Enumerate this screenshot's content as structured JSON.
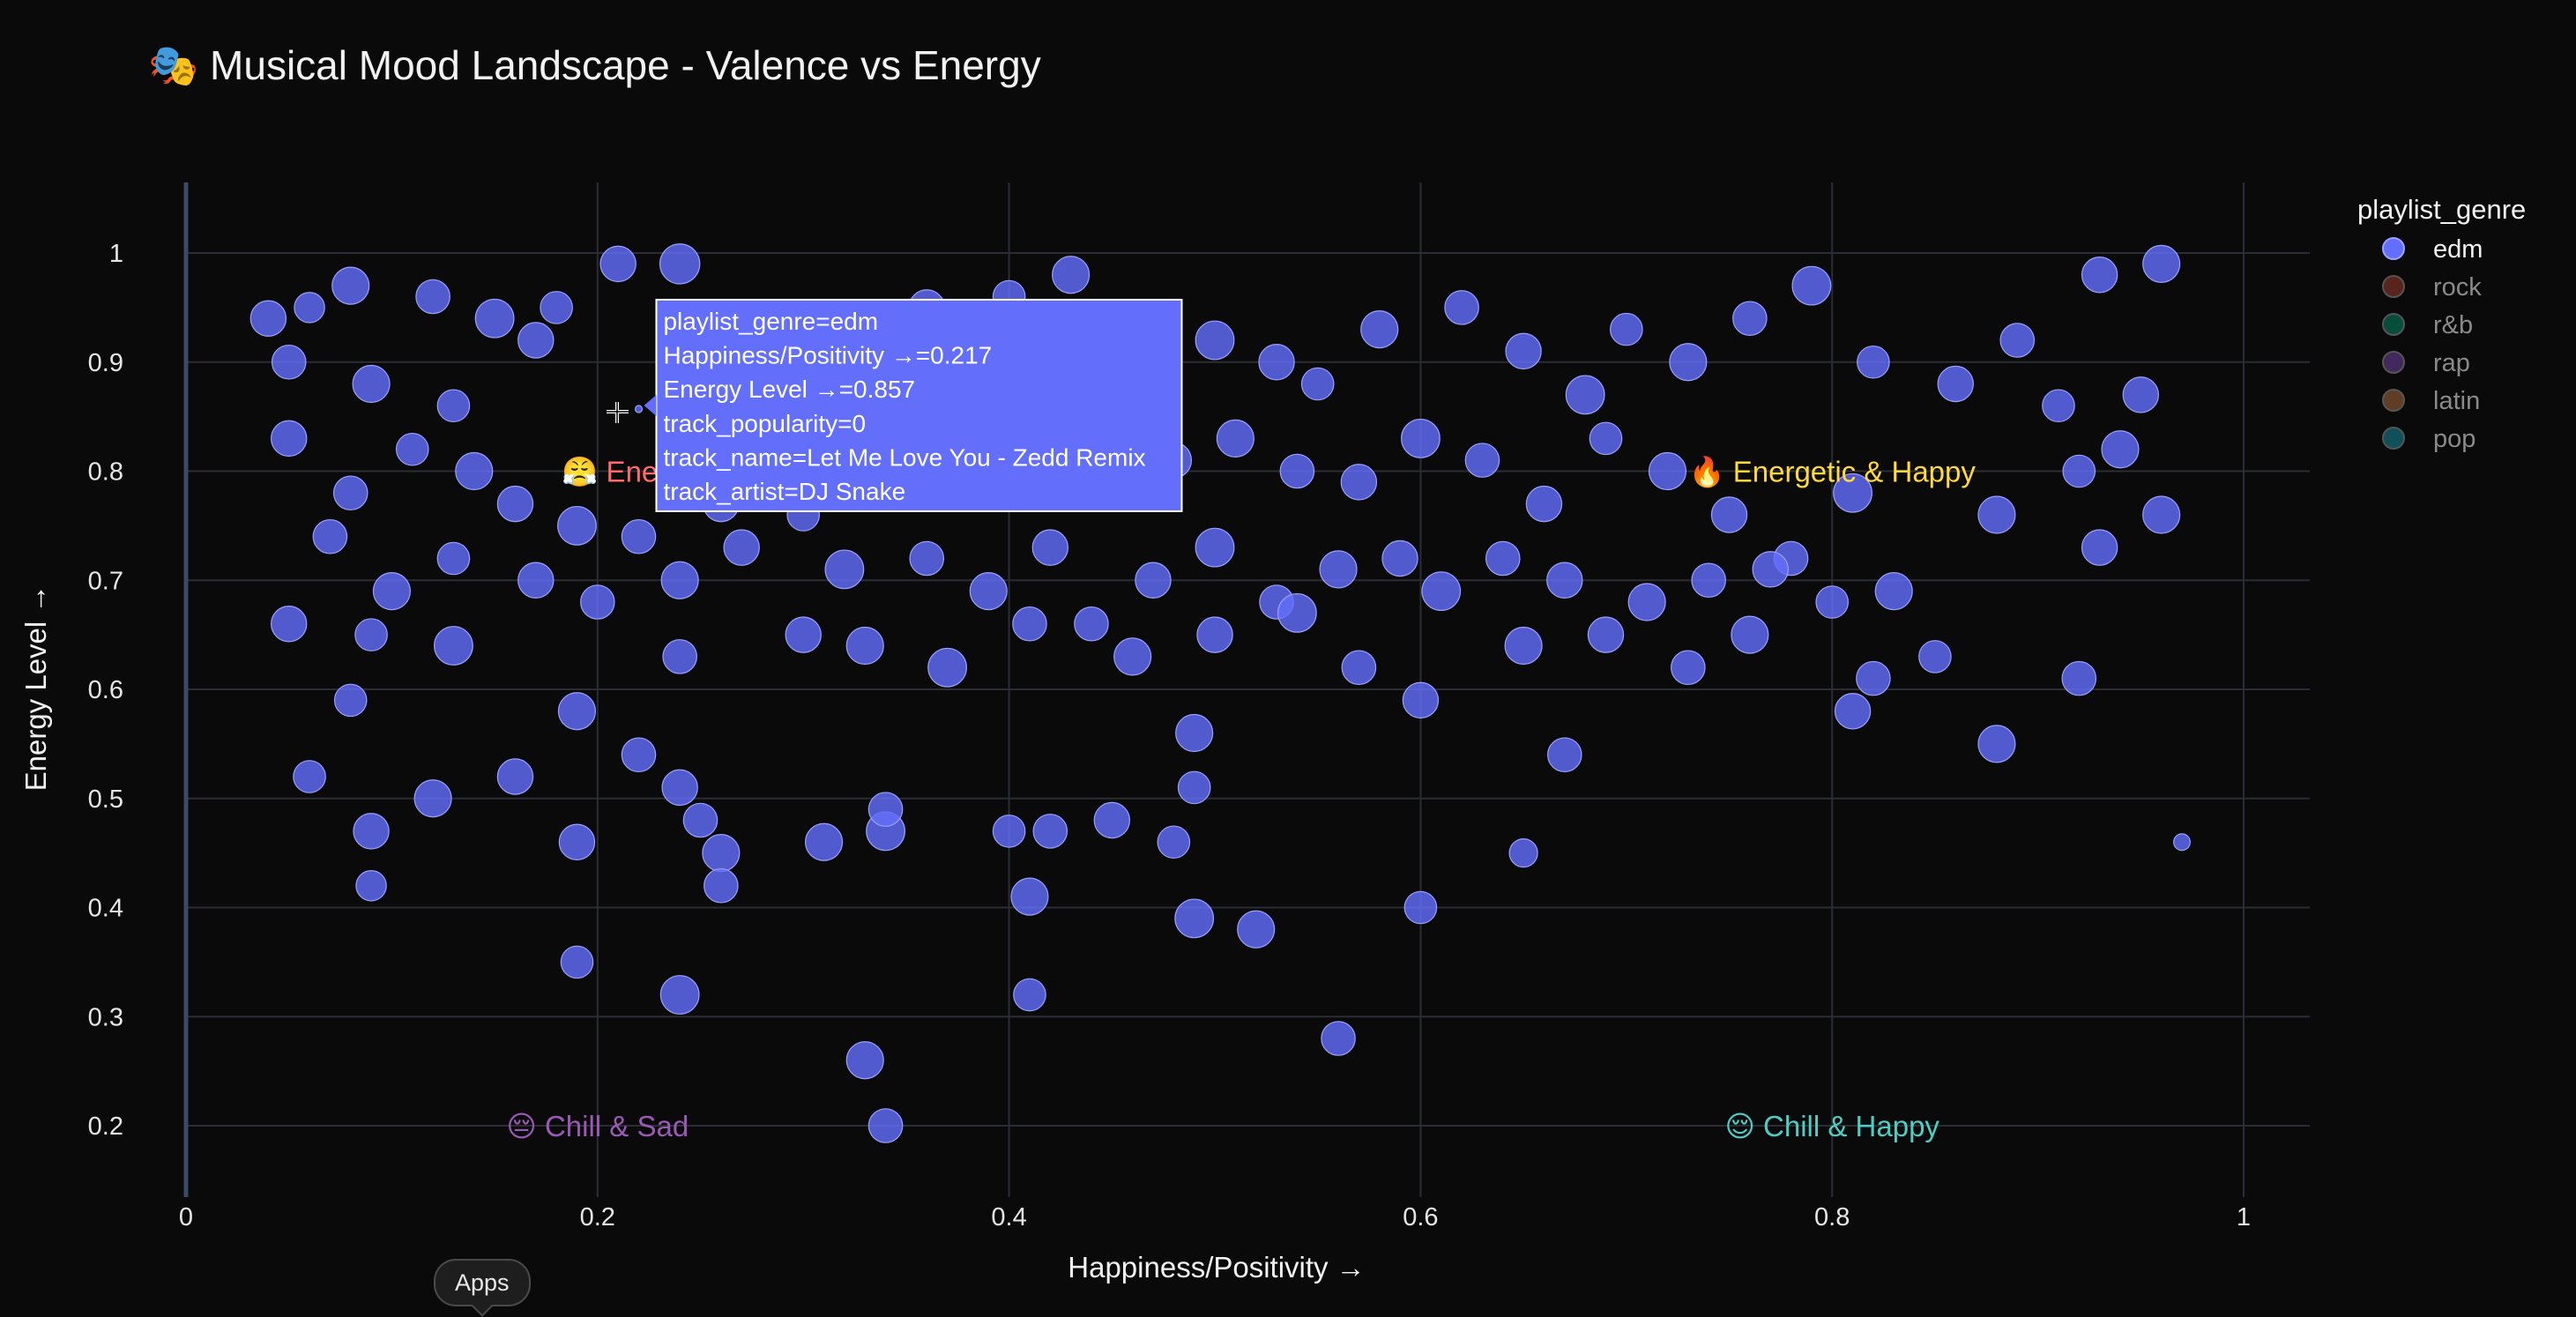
{
  "chart_data": {
    "type": "scatter",
    "title": "🎭 Musical Mood Landscape - Valence vs Energy",
    "xlabel": "Happiness/Positivity →",
    "ylabel": "Energy Level →",
    "xlim": [
      0,
      1.03
    ],
    "ylim": [
      0.14,
      1.065
    ],
    "x_ticks": [
      "0",
      "0.2",
      "0.4",
      "0.6",
      "0.8",
      "1"
    ],
    "y_ticks": [
      "0.2",
      "0.3",
      "0.4",
      "0.5",
      "0.6",
      "0.7",
      "0.8",
      "0.9",
      "1"
    ],
    "grid": true,
    "legend": {
      "title": "playlist_genre",
      "placement": "right",
      "entries": [
        {
          "name": "edm",
          "color": "#636efa",
          "active": true
        },
        {
          "name": "rock",
          "color": "#ef553b",
          "active": false
        },
        {
          "name": "r&b",
          "color": "#00cc96",
          "active": false
        },
        {
          "name": "rap",
          "color": "#ab63fa",
          "active": false
        },
        {
          "name": "latin",
          "color": "#ffa15a",
          "active": false
        },
        {
          "name": "pop",
          "color": "#19d3f3",
          "active": false
        }
      ]
    },
    "annotations": [
      {
        "text": "😤 Energetic & Angry",
        "x": 0.25,
        "y": 0.8,
        "color": "#ff6b6b"
      },
      {
        "text": "🔥 Energetic & Happy",
        "x": 0.8,
        "y": 0.8,
        "color": "#ffd93d"
      },
      {
        "text": "😔 Chill & Sad",
        "x": 0.2,
        "y": 0.2,
        "color": "#9b59b6"
      },
      {
        "text": "😌 Chill & Happy",
        "x": 0.8,
        "y": 0.2,
        "color": "#4ecdc4"
      }
    ],
    "series": [
      {
        "name": "edm",
        "color": "#636efa",
        "points": [
          [
            0.22,
            0.857,
            0
          ],
          [
            0.04,
            0.94,
            45
          ],
          [
            0.06,
            0.95,
            30
          ],
          [
            0.08,
            0.97,
            50
          ],
          [
            0.12,
            0.96,
            40
          ],
          [
            0.15,
            0.94,
            55
          ],
          [
            0.18,
            0.95,
            35
          ],
          [
            0.21,
            0.99,
            45
          ],
          [
            0.24,
            0.99,
            60
          ],
          [
            0.05,
            0.9,
            40
          ],
          [
            0.09,
            0.88,
            50
          ],
          [
            0.13,
            0.86,
            35
          ],
          [
            0.17,
            0.92,
            45
          ],
          [
            0.25,
            0.9,
            50
          ],
          [
            0.28,
            0.91,
            40
          ],
          [
            0.3,
            0.88,
            30
          ],
          [
            0.33,
            0.92,
            55
          ],
          [
            0.36,
            0.95,
            45
          ],
          [
            0.4,
            0.96,
            35
          ],
          [
            0.43,
            0.98,
            50
          ],
          [
            0.46,
            0.94,
            40
          ],
          [
            0.5,
            0.92,
            55
          ],
          [
            0.53,
            0.9,
            45
          ],
          [
            0.55,
            0.88,
            35
          ],
          [
            0.58,
            0.93,
            50
          ],
          [
            0.62,
            0.95,
            40
          ],
          [
            0.65,
            0.91,
            45
          ],
          [
            0.68,
            0.87,
            55
          ],
          [
            0.7,
            0.93,
            35
          ],
          [
            0.73,
            0.9,
            50
          ],
          [
            0.76,
            0.94,
            40
          ],
          [
            0.79,
            0.97,
            55
          ],
          [
            0.82,
            0.9,
            35
          ],
          [
            0.86,
            0.88,
            45
          ],
          [
            0.89,
            0.92,
            40
          ],
          [
            0.93,
            0.98,
            45
          ],
          [
            0.96,
            0.99,
            50
          ],
          [
            0.95,
            0.87,
            45
          ],
          [
            0.91,
            0.86,
            35
          ],
          [
            0.94,
            0.82,
            50
          ],
          [
            0.97,
            0.46,
            5
          ],
          [
            0.05,
            0.83,
            45
          ],
          [
            0.08,
            0.78,
            40
          ],
          [
            0.11,
            0.82,
            35
          ],
          [
            0.14,
            0.8,
            50
          ],
          [
            0.16,
            0.77,
            45
          ],
          [
            0.19,
            0.75,
            55
          ],
          [
            0.22,
            0.74,
            40
          ],
          [
            0.26,
            0.77,
            45
          ],
          [
            0.3,
            0.76,
            35
          ],
          [
            0.34,
            0.78,
            50
          ],
          [
            0.38,
            0.8,
            45
          ],
          [
            0.41,
            0.82,
            40
          ],
          [
            0.45,
            0.79,
            55
          ],
          [
            0.48,
            0.81,
            45
          ],
          [
            0.51,
            0.83,
            50
          ],
          [
            0.54,
            0.8,
            40
          ],
          [
            0.57,
            0.79,
            45
          ],
          [
            0.6,
            0.83,
            55
          ],
          [
            0.63,
            0.81,
            40
          ],
          [
            0.66,
            0.77,
            45
          ],
          [
            0.69,
            0.83,
            35
          ],
          [
            0.72,
            0.8,
            50
          ],
          [
            0.75,
            0.76,
            45
          ],
          [
            0.78,
            0.72,
            40
          ],
          [
            0.81,
            0.78,
            55
          ],
          [
            0.88,
            0.76,
            50
          ],
          [
            0.92,
            0.8,
            35
          ],
          [
            0.96,
            0.76,
            50
          ],
          [
            0.93,
            0.73,
            45
          ],
          [
            0.07,
            0.74,
            40
          ],
          [
            0.1,
            0.69,
            50
          ],
          [
            0.13,
            0.72,
            35
          ],
          [
            0.17,
            0.7,
            45
          ],
          [
            0.2,
            0.68,
            40
          ],
          [
            0.24,
            0.7,
            50
          ],
          [
            0.27,
            0.73,
            45
          ],
          [
            0.32,
            0.71,
            55
          ],
          [
            0.36,
            0.72,
            40
          ],
          [
            0.39,
            0.69,
            50
          ],
          [
            0.42,
            0.73,
            45
          ],
          [
            0.44,
            0.66,
            40
          ],
          [
            0.47,
            0.7,
            45
          ],
          [
            0.5,
            0.73,
            55
          ],
          [
            0.53,
            0.68,
            40
          ],
          [
            0.56,
            0.71,
            50
          ],
          [
            0.59,
            0.72,
            45
          ],
          [
            0.61,
            0.69,
            55
          ],
          [
            0.64,
            0.72,
            40
          ],
          [
            0.67,
            0.7,
            45
          ],
          [
            0.71,
            0.68,
            50
          ],
          [
            0.74,
            0.7,
            40
          ],
          [
            0.77,
            0.71,
            45
          ],
          [
            0.8,
            0.68,
            35
          ],
          [
            0.83,
            0.69,
            50
          ],
          [
            0.05,
            0.66,
            45
          ],
          [
            0.09,
            0.65,
            35
          ],
          [
            0.13,
            0.64,
            55
          ],
          [
            0.19,
            0.58,
            50
          ],
          [
            0.24,
            0.63,
            40
          ],
          [
            0.3,
            0.65,
            45
          ],
          [
            0.33,
            0.64,
            50
          ],
          [
            0.37,
            0.62,
            55
          ],
          [
            0.41,
            0.66,
            40
          ],
          [
            0.46,
            0.63,
            50
          ],
          [
            0.5,
            0.65,
            45
          ],
          [
            0.54,
            0.67,
            55
          ],
          [
            0.57,
            0.62,
            40
          ],
          [
            0.6,
            0.59,
            45
          ],
          [
            0.65,
            0.64,
            50
          ],
          [
            0.69,
            0.65,
            45
          ],
          [
            0.73,
            0.62,
            40
          ],
          [
            0.76,
            0.65,
            50
          ],
          [
            0.81,
            0.58,
            45
          ],
          [
            0.82,
            0.61,
            40
          ],
          [
            0.85,
            0.63,
            35
          ],
          [
            0.92,
            0.61,
            40
          ],
          [
            0.08,
            0.59,
            35
          ],
          [
            0.16,
            0.52,
            45
          ],
          [
            0.19,
            0.46,
            45
          ],
          [
            0.12,
            0.5,
            50
          ],
          [
            0.06,
            0.52,
            35
          ],
          [
            0.09,
            0.47,
            45
          ],
          [
            0.22,
            0.54,
            40
          ],
          [
            0.24,
            0.51,
            45
          ],
          [
            0.26,
            0.45,
            50
          ],
          [
            0.25,
            0.48,
            40
          ],
          [
            0.31,
            0.46,
            50
          ],
          [
            0.34,
            0.47,
            55
          ],
          [
            0.34,
            0.49,
            40
          ],
          [
            0.4,
            0.47,
            35
          ],
          [
            0.41,
            0.41,
            50
          ],
          [
            0.42,
            0.47,
            40
          ],
          [
            0.45,
            0.48,
            45
          ],
          [
            0.48,
            0.46,
            35
          ],
          [
            0.49,
            0.51,
            35
          ],
          [
            0.49,
            0.56,
            50
          ],
          [
            0.67,
            0.54,
            40
          ],
          [
            0.88,
            0.55,
            50
          ],
          [
            0.65,
            0.45,
            25
          ],
          [
            0.19,
            0.35,
            35
          ],
          [
            0.24,
            0.32,
            55
          ],
          [
            0.33,
            0.26,
            50
          ],
          [
            0.34,
            0.2,
            40
          ],
          [
            0.41,
            0.32,
            35
          ],
          [
            0.49,
            0.39,
            55
          ],
          [
            0.52,
            0.38,
            50
          ],
          [
            0.56,
            0.28,
            40
          ],
          [
            0.6,
            0.4,
            35
          ],
          [
            0.09,
            0.42,
            30
          ],
          [
            0.26,
            0.42,
            40
          ]
        ]
      }
    ],
    "tooltip": {
      "lines": [
        "playlist_genre=edm",
        "Happiness/Positivity →=0.217",
        "Energy Level →=0.857",
        "track_popularity=0",
        "track_name=Let Me Love You - Zedd Remix",
        "track_artist=DJ Snake"
      ],
      "x": 0.217,
      "y": 0.857,
      "color": "#636efa"
    }
  },
  "apps_label": "Apps"
}
